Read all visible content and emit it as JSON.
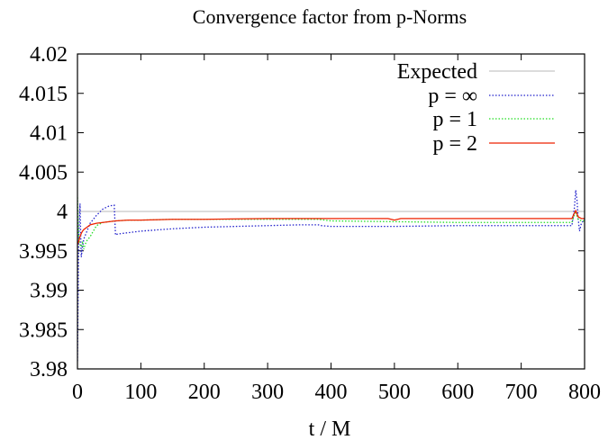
{
  "chart_data": {
    "type": "line",
    "title": "Convergence factor from p-Norms",
    "xlabel": "t / M",
    "ylabel": "",
    "xlim": [
      0,
      800
    ],
    "ylim": [
      3.98,
      4.02
    ],
    "x_ticks": [
      0,
      100,
      200,
      300,
      400,
      500,
      600,
      700,
      800
    ],
    "x_tick_labels": [
      "0",
      "100",
      "200",
      "300",
      "400",
      "500",
      "600",
      "700",
      "800"
    ],
    "y_ticks": [
      3.98,
      3.985,
      3.99,
      3.995,
      4.0,
      4.005,
      4.01,
      4.015,
      4.02
    ],
    "y_tick_labels": [
      "3.98",
      "3.985",
      "3.99",
      "3.995",
      "4",
      "4.005",
      "4.01",
      "4.015",
      "4.02"
    ],
    "grid": false,
    "legend_position": "top-right",
    "series": [
      {
        "name": "Expected",
        "color": "#c8c8c8",
        "style": "solid",
        "x": [
          0,
          800
        ],
        "y": [
          4.0,
          4.0
        ]
      },
      {
        "name": "p = ∞",
        "color": "#2222cc",
        "style": "dotted",
        "x": [
          0,
          2,
          4,
          6,
          8,
          10,
          15,
          20,
          30,
          40,
          50,
          58,
          60,
          62,
          70,
          100,
          150,
          200,
          250,
          300,
          350,
          380,
          385,
          400,
          450,
          500,
          600,
          700,
          780,
          784,
          786,
          788,
          790,
          792,
          795,
          800
        ],
        "y": [
          3.981,
          3.9965,
          4.001,
          3.9942,
          3.9955,
          3.9965,
          3.9975,
          3.9985,
          3.9995,
          4.0003,
          4.0007,
          4.0008,
          3.997,
          3.9971,
          3.9972,
          3.9975,
          3.9978,
          3.998,
          3.9981,
          3.9982,
          3.9983,
          3.9983,
          3.9982,
          3.9981,
          3.9981,
          3.9981,
          3.9982,
          3.9982,
          3.9982,
          4.0005,
          4.0027,
          4.0015,
          3.999,
          3.9975,
          3.9985,
          3.999
        ]
      },
      {
        "name": "p = 1",
        "color": "#22dd22",
        "style": "dotted",
        "x": [
          0,
          2,
          4,
          6,
          8,
          10,
          12,
          15,
          20,
          25,
          30,
          40,
          60,
          80,
          100,
          150,
          200,
          300,
          380,
          400,
          500,
          600,
          700,
          780,
          784,
          786,
          790,
          795,
          800
        ],
        "y": [
          4.0018,
          3.9965,
          3.9958,
          3.9955,
          3.996,
          3.9952,
          3.9958,
          3.9963,
          3.9968,
          3.9975,
          3.9982,
          3.9986,
          3.9988,
          3.9989,
          3.9989,
          3.999,
          3.999,
          3.999,
          3.999,
          3.9988,
          3.9987,
          3.9986,
          3.9986,
          3.9986,
          3.9996,
          3.9998,
          3.999,
          3.9988,
          3.9988
        ]
      },
      {
        "name": "p = 2",
        "color": "#ee2200",
        "style": "solid",
        "x": [
          0,
          2,
          4,
          6,
          8,
          10,
          15,
          20,
          30,
          40,
          50,
          60,
          80,
          100,
          150,
          200,
          300,
          380,
          400,
          490,
          500,
          510,
          600,
          700,
          780,
          784,
          786,
          790,
          795,
          800
        ],
        "y": [
          3.9958,
          3.9962,
          3.9968,
          3.9972,
          3.9975,
          3.9977,
          3.998,
          3.9983,
          3.9985,
          3.9986,
          3.9987,
          3.9988,
          3.9989,
          3.9989,
          3.999,
          3.999,
          3.9991,
          3.9991,
          3.9991,
          3.9991,
          3.9989,
          3.9991,
          3.9991,
          3.9991,
          3.9991,
          3.9998,
          4.0001,
          3.9993,
          3.9991,
          3.9991
        ]
      }
    ]
  }
}
